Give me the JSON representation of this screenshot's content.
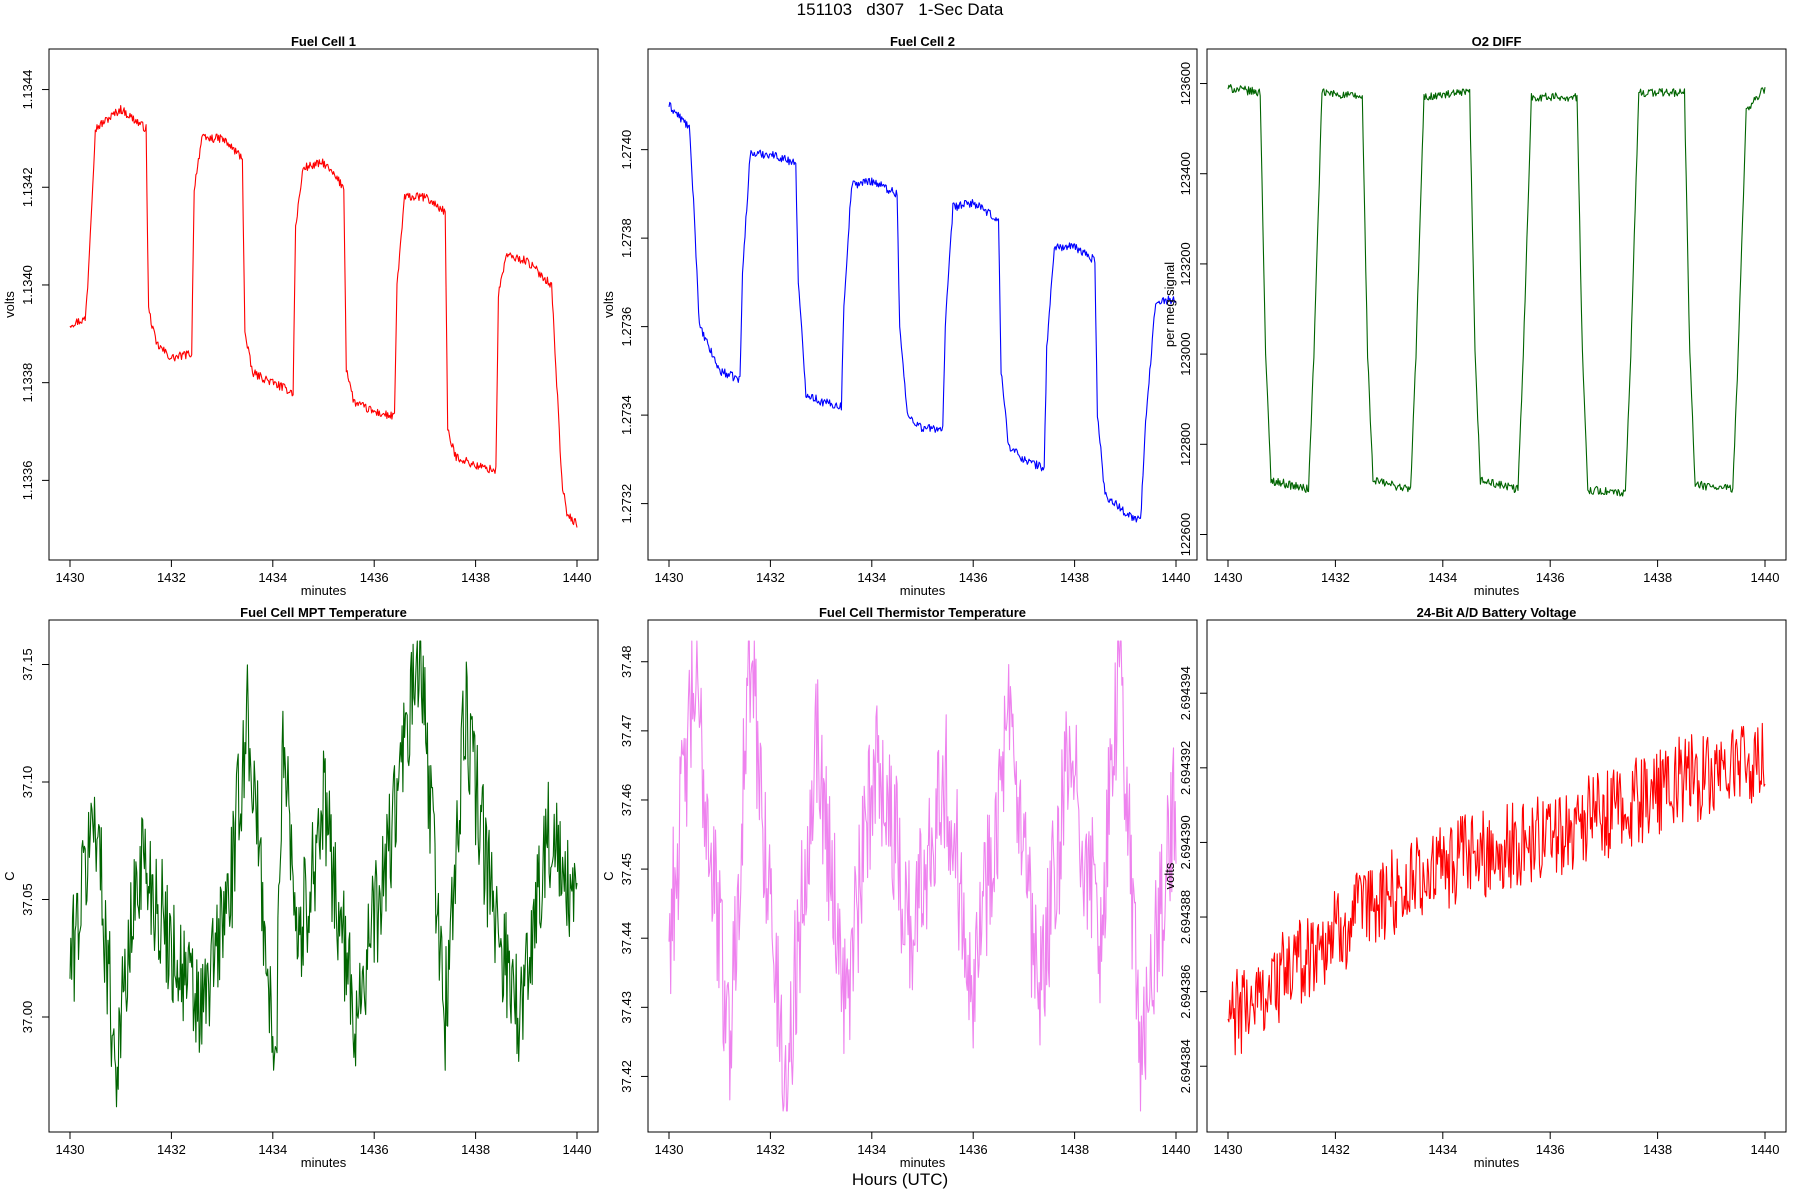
{
  "figure": {
    "title": "151103   d307   1-Sec Data",
    "footer": "Hours (UTC)"
  },
  "chart_data": [
    {
      "type": "line",
      "title": "Fuel Cell 1",
      "xlabel": "minutes",
      "ylabel": "volts",
      "color": "#ff0000",
      "xlim": [
        1430,
        1440
      ],
      "ylim": [
        1.13348,
        1.13444
      ],
      "xticks": [
        1430,
        1432,
        1434,
        1436,
        1438,
        1440
      ],
      "xtick_labels": [
        "1430",
        "1432",
        "1434",
        "1436",
        "1438",
        "1440"
      ],
      "yticks": [
        1.1336,
        1.1338,
        1.134,
        1.1342,
        1.1344
      ],
      "ytick_labels": [
        "1.1336",
        "1.1338",
        "1.1340",
        "1.1342",
        "1.1344"
      ],
      "x": [
        1430.0,
        1430.3,
        1430.35,
        1430.5,
        1431.0,
        1431.5,
        1431.55,
        1431.7,
        1432.0,
        1432.4,
        1432.45,
        1432.6,
        1433.0,
        1433.4,
        1433.45,
        1433.6,
        1434.0,
        1434.4,
        1434.45,
        1434.6,
        1435.0,
        1435.4,
        1435.45,
        1435.6,
        1436.0,
        1436.4,
        1436.45,
        1436.6,
        1437.0,
        1437.4,
        1437.45,
        1437.6,
        1438.0,
        1438.4,
        1438.45,
        1438.6,
        1439.0,
        1439.5,
        1439.7,
        1439.8,
        1440.0
      ],
      "values": [
        1.13392,
        1.13393,
        1.134,
        1.13432,
        1.13436,
        1.13432,
        1.13395,
        1.13388,
        1.13385,
        1.13386,
        1.1342,
        1.1343,
        1.1343,
        1.13426,
        1.1339,
        1.13382,
        1.1338,
        1.13378,
        1.13412,
        1.13424,
        1.13425,
        1.1342,
        1.13383,
        1.13376,
        1.13374,
        1.13373,
        1.134,
        1.13418,
        1.13418,
        1.13415,
        1.1337,
        1.13365,
        1.13363,
        1.13362,
        1.13398,
        1.13406,
        1.13405,
        1.134,
        1.1336,
        1.13353,
        1.13351
      ]
    },
    {
      "type": "line",
      "title": "Fuel Cell 2",
      "xlabel": "minutes",
      "ylabel": "volts",
      "color": "#0000ff",
      "xlim": [
        1430,
        1440
      ],
      "ylim": [
        1.27312,
        1.27418
      ],
      "xticks": [
        1430,
        1432,
        1434,
        1436,
        1438,
        1440
      ],
      "xtick_labels": [
        "1430",
        "1432",
        "1434",
        "1436",
        "1438",
        "1440"
      ],
      "yticks": [
        1.2732,
        1.2734,
        1.2736,
        1.2738,
        1.274
      ],
      "ytick_labels": [
        "1.2732",
        "1.2734",
        "1.2736",
        "1.2738",
        "1.2740"
      ],
      "x": [
        1430.0,
        1430.4,
        1430.5,
        1430.6,
        1431.0,
        1431.4,
        1431.45,
        1431.6,
        1432.0,
        1432.5,
        1432.55,
        1432.7,
        1433.0,
        1433.4,
        1433.45,
        1433.6,
        1434.0,
        1434.5,
        1434.55,
        1434.7,
        1435.0,
        1435.4,
        1435.45,
        1435.6,
        1436.0,
        1436.5,
        1436.55,
        1436.7,
        1437.0,
        1437.4,
        1437.45,
        1437.6,
        1438.0,
        1438.4,
        1438.45,
        1438.6,
        1439.0,
        1439.3,
        1439.4,
        1439.6,
        1440.0
      ],
      "values": [
        1.2741,
        1.27405,
        1.27385,
        1.2736,
        1.2735,
        1.27348,
        1.27372,
        1.27399,
        1.27399,
        1.27397,
        1.2737,
        1.27345,
        1.27343,
        1.27342,
        1.27365,
        1.27392,
        1.27393,
        1.2739,
        1.2736,
        1.2734,
        1.27337,
        1.27337,
        1.2736,
        1.27387,
        1.27388,
        1.27384,
        1.2735,
        1.27333,
        1.2733,
        1.27328,
        1.27355,
        1.27378,
        1.27378,
        1.27375,
        1.2734,
        1.27322,
        1.27318,
        1.27316,
        1.27338,
        1.27366,
        1.27366
      ]
    },
    {
      "type": "line",
      "title": "O2 DIFF",
      "xlabel": "minutes",
      "ylabel": "per meg signal",
      "color": "#006400",
      "xlim": [
        1430,
        1440
      ],
      "ylim": [
        122590,
        123630
      ],
      "xticks": [
        1430,
        1432,
        1434,
        1436,
        1438,
        1440
      ],
      "xtick_labels": [
        "1430",
        "1432",
        "1434",
        "1436",
        "1438",
        "1440"
      ],
      "yticks": [
        122600,
        122800,
        123000,
        123200,
        123400,
        123600
      ],
      "ytick_labels": [
        "122600",
        "122800",
        "123000",
        "123200",
        "123400",
        "123600"
      ],
      "x": [
        1430.0,
        1430.6,
        1430.7,
        1430.8,
        1431.5,
        1431.6,
        1431.75,
        1432.5,
        1432.6,
        1432.7,
        1433.4,
        1433.5,
        1433.65,
        1434.5,
        1434.6,
        1434.7,
        1435.4,
        1435.5,
        1435.65,
        1436.5,
        1436.6,
        1436.7,
        1437.4,
        1437.5,
        1437.65,
        1438.5,
        1438.6,
        1438.7,
        1439.4,
        1439.5,
        1439.65,
        1440.0
      ],
      "values": [
        123590,
        123580,
        123000,
        122720,
        122700,
        123000,
        123580,
        123570,
        123000,
        122720,
        122700,
        123000,
        123570,
        123580,
        123000,
        122720,
        122700,
        123000,
        123570,
        123570,
        123000,
        122700,
        122690,
        123000,
        123580,
        123580,
        123000,
        122710,
        122700,
        123000,
        123540,
        123590
      ]
    },
    {
      "type": "line",
      "title": "Fuel Cell MPT Temperature",
      "xlabel": "minutes",
      "ylabel": "C",
      "color": "#006400",
      "xlim": [
        1430,
        1440
      ],
      "ylim": [
        36.96,
        37.16
      ],
      "xticks": [
        1430,
        1432,
        1434,
        1436,
        1438,
        1440
      ],
      "xtick_labels": [
        "1430",
        "1432",
        "1434",
        "1436",
        "1438",
        "1440"
      ],
      "yticks": [
        37.0,
        37.05,
        37.1,
        37.15
      ],
      "ytick_labels": [
        "37.00",
        "37.05",
        "37.10",
        "37.15"
      ],
      "mean": 37.035,
      "noise": 0.025,
      "x": [
        1430.0,
        1430.5,
        1430.9,
        1431.4,
        1432.0,
        1432.6,
        1433.2,
        1433.5,
        1433.8,
        1434.05,
        1434.2,
        1434.5,
        1435.0,
        1435.6,
        1436.2,
        1436.9,
        1437.4,
        1437.8,
        1438.3,
        1438.9,
        1439.4,
        1440.0
      ],
      "values": [
        37.02,
        37.09,
        36.98,
        37.07,
        37.03,
        37.0,
        37.06,
        37.13,
        37.05,
        36.97,
        37.13,
        37.03,
        37.09,
        37.0,
        37.06,
        37.155,
        37.0,
        37.13,
        37.05,
        37.0,
        37.08,
        37.04
      ]
    },
    {
      "type": "line",
      "title": "Fuel Cell Thermistor Temperature",
      "xlabel": "minutes",
      "ylabel": "C",
      "color": "#ee82ee",
      "xlim": [
        1430,
        1440
      ],
      "ylim": [
        37.415,
        37.483
      ],
      "xticks": [
        1430,
        1432,
        1434,
        1436,
        1438,
        1440
      ],
      "xtick_labels": [
        "1430",
        "1432",
        "1434",
        "1436",
        "1438",
        "1440"
      ],
      "yticks": [
        37.42,
        37.43,
        37.44,
        37.45,
        37.46,
        37.47,
        37.48
      ],
      "ytick_labels": [
        "37.42",
        "37.43",
        "37.44",
        "37.45",
        "37.46",
        "37.47",
        "37.48"
      ],
      "mean": 37.451,
      "noise": 0.011,
      "x": [
        1430.0,
        1430.5,
        1431.2,
        1431.6,
        1432.3,
        1432.9,
        1433.5,
        1434.1,
        1434.8,
        1435.4,
        1436.0,
        1436.7,
        1437.3,
        1437.9,
        1438.5,
        1438.9,
        1439.3,
        1440.0
      ],
      "values": [
        37.44,
        37.477,
        37.425,
        37.481,
        37.417,
        37.47,
        37.43,
        37.468,
        37.44,
        37.465,
        37.435,
        37.47,
        37.43,
        37.466,
        37.44,
        37.48,
        37.422,
        37.46
      ]
    },
    {
      "type": "line",
      "title": "24-Bit A/D Battery Voltage",
      "xlabel": "minutes",
      "ylabel": "volts",
      "color": "#ff0000",
      "xlim": [
        1430,
        1440
      ],
      "ylim": [
        2.6943828,
        2.6943954
      ],
      "xticks": [
        1430,
        1432,
        1434,
        1436,
        1438,
        1440
      ],
      "xtick_labels": [
        "1430",
        "1432",
        "1434",
        "1436",
        "1438",
        "1440"
      ],
      "yticks": [
        2.694384,
        2.694386,
        2.694388,
        2.69439,
        2.694392,
        2.694394
      ],
      "ytick_labels": [
        "2.694384",
        "2.694386",
        "2.694388",
        "2.694390",
        "2.694392",
        "2.694394"
      ],
      "noise": 1.2e-06,
      "x": [
        1430.0,
        1430.5,
        1431.0,
        1431.5,
        1432.0,
        1432.5,
        1433.0,
        1433.5,
        1434.0,
        1434.5,
        1435.0,
        1435.5,
        1436.0,
        1436.5,
        1437.0,
        1437.5,
        1438.0,
        1438.5,
        1439.0,
        1439.5,
        1440.0
      ],
      "values": [
        2.6943852,
        2.6943858,
        2.6943864,
        2.694387,
        2.6943876,
        2.6943881,
        2.6943886,
        2.694389,
        2.6943893,
        2.6943896,
        2.6943898,
        2.69439,
        2.6943902,
        2.6943905,
        2.6943907,
        2.694391,
        2.6943914,
        2.6943917,
        2.6943918,
        2.6943921,
        2.694392
      ]
    }
  ]
}
